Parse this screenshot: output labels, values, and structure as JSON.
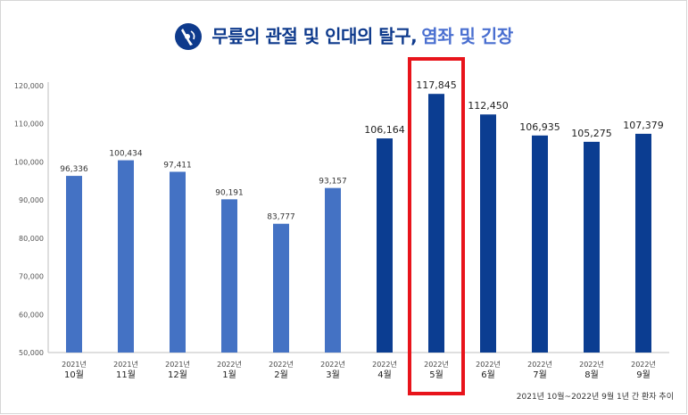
{
  "colors": {
    "bar_light": "#4472c4",
    "bar_dark": "#0b3d91",
    "highlight_border": "#e8141b",
    "title_dark": "#0e3a8c",
    "title_accent": "#4a6fd0"
  },
  "title": {
    "logo_icon": "knee-joint-icon",
    "main": "무릎의 관절 및 인대의 탈구,",
    "accent": "염좌 및 긴장"
  },
  "footnote": "2021년 10월~2022년 9월 1년 간 환자 추이",
  "chart_data": {
    "type": "bar",
    "title": "무릎의 관절 및 인대의 탈구, 염좌 및 긴장",
    "xlabel": "",
    "ylabel": "",
    "ylim": [
      50000,
      120000
    ],
    "yticks": [
      50000,
      60000,
      70000,
      80000,
      90000,
      100000,
      110000,
      120000
    ],
    "ytick_labels": [
      "50,000",
      "60,000",
      "70,000",
      "80,000",
      "90,000",
      "100,000",
      "110,000",
      "120,000"
    ],
    "grid": false,
    "legend": "none",
    "categories": [
      {
        "year": "2021년",
        "month": "10월"
      },
      {
        "year": "2021년",
        "month": "11월"
      },
      {
        "year": "2021년",
        "month": "12월"
      },
      {
        "year": "2022년",
        "month": "1월"
      },
      {
        "year": "2022년",
        "month": "2월"
      },
      {
        "year": "2022년",
        "month": "3월"
      },
      {
        "year": "2022년",
        "month": "4월"
      },
      {
        "year": "2022년",
        "month": "5월"
      },
      {
        "year": "2022년",
        "month": "6월"
      },
      {
        "year": "2022년",
        "month": "7월"
      },
      {
        "year": "2022년",
        "month": "8월"
      },
      {
        "year": "2022년",
        "month": "9월"
      }
    ],
    "values": [
      96336,
      100434,
      97411,
      90191,
      83777,
      93157,
      106164,
      117845,
      112450,
      106935,
      105275,
      107379
    ],
    "value_labels": [
      "96,336",
      "100,434",
      "97,411",
      "90,191",
      "83,777",
      "93,157",
      "106,164",
      "117,845",
      "112,450",
      "106,935",
      "105,275",
      "107,379"
    ],
    "bar_tone": [
      "light",
      "light",
      "light",
      "light",
      "light",
      "light",
      "dark",
      "dark",
      "dark",
      "dark",
      "dark",
      "dark"
    ],
    "highlighted_category": "5월"
  }
}
